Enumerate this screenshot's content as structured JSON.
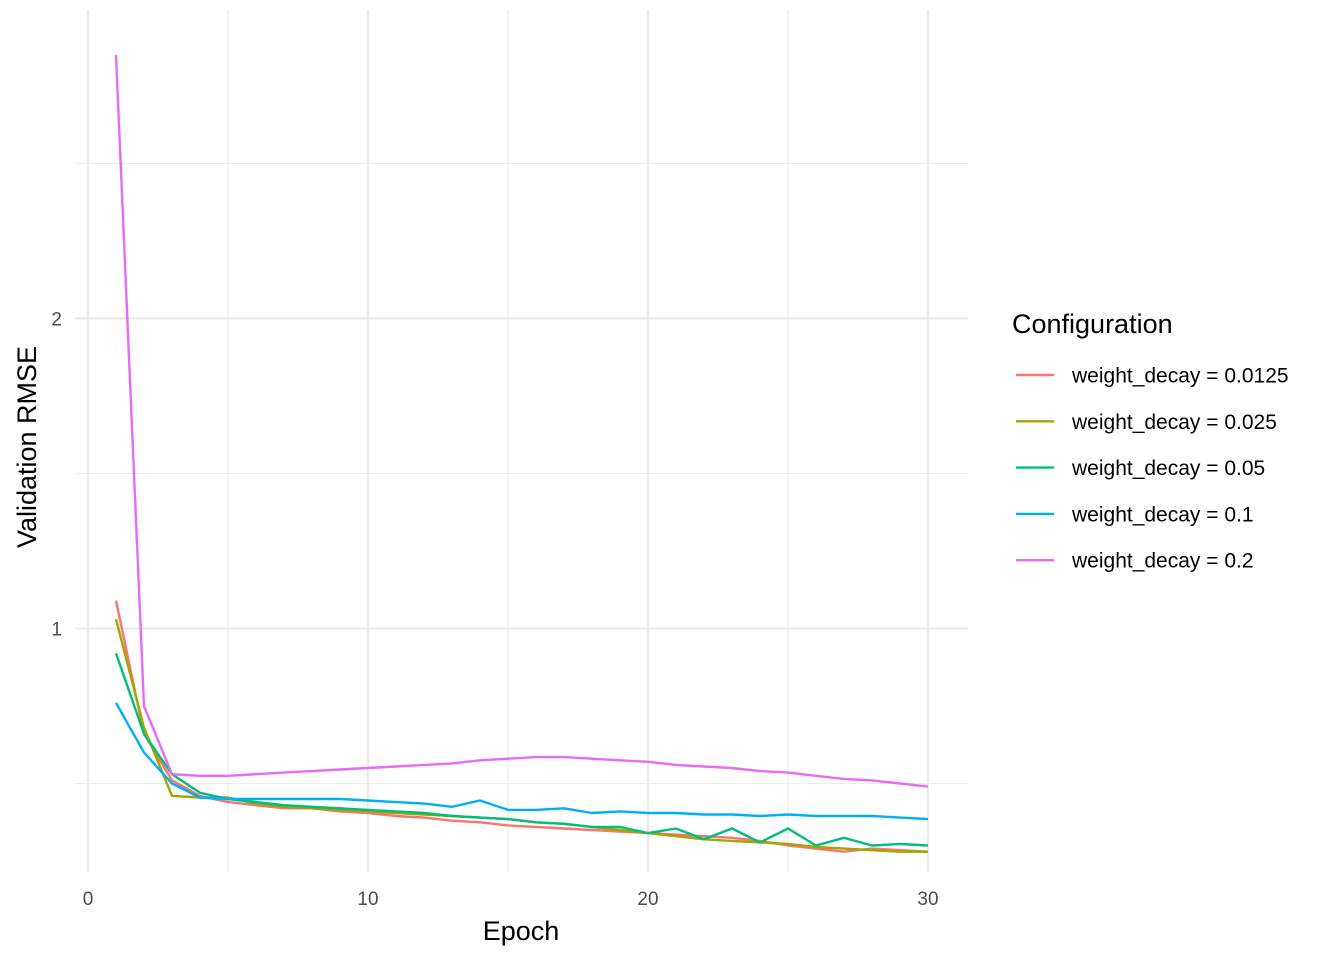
{
  "chart_data": {
    "type": "line",
    "xlabel": "Epoch",
    "ylabel": "Validation RMSE",
    "xlim": [
      0,
      30
    ],
    "ylim": [
      0.2,
      2.96
    ],
    "x_ticks": [
      0,
      10,
      20,
      30
    ],
    "y_ticks": [
      1,
      2
    ],
    "grid": true,
    "legend": {
      "title": "Configuration",
      "position": "right"
    },
    "series": [
      {
        "name": "weight_decay = 0.0125",
        "color": "#F8766D",
        "x": [
          1,
          2,
          3,
          4,
          5,
          6,
          7,
          8,
          9,
          10,
          11,
          12,
          13,
          14,
          15,
          16,
          17,
          18,
          19,
          20,
          21,
          22,
          23,
          24,
          25,
          26,
          27,
          28,
          29,
          30
        ],
        "values": [
          1.09,
          0.66,
          0.51,
          0.46,
          0.44,
          0.43,
          0.42,
          0.42,
          0.41,
          0.405,
          0.395,
          0.39,
          0.38,
          0.375,
          0.365,
          0.36,
          0.355,
          0.35,
          0.345,
          0.34,
          0.335,
          0.33,
          0.325,
          0.315,
          0.3,
          0.29,
          0.28,
          0.29,
          0.285,
          0.28
        ]
      },
      {
        "name": "weight_decay = 0.025",
        "color": "#A3A500",
        "x": [
          1,
          2,
          3,
          4,
          5,
          6,
          7,
          8,
          9,
          10,
          11,
          12,
          13,
          14,
          15,
          16,
          17,
          18,
          19,
          20,
          21,
          22,
          23,
          24,
          25,
          26,
          27,
          28,
          29,
          30
        ],
        "values": [
          1.03,
          0.68,
          0.46,
          0.455,
          0.455,
          0.435,
          0.425,
          0.42,
          0.415,
          0.41,
          0.405,
          0.4,
          0.395,
          0.39,
          0.385,
          0.375,
          0.37,
          0.36,
          0.35,
          0.34,
          0.33,
          0.32,
          0.315,
          0.31,
          0.305,
          0.295,
          0.29,
          0.285,
          0.28,
          0.28
        ]
      },
      {
        "name": "weight_decay = 0.05",
        "color": "#00BF7D",
        "x": [
          1,
          2,
          3,
          4,
          5,
          6,
          7,
          8,
          9,
          10,
          11,
          12,
          13,
          14,
          15,
          16,
          17,
          18,
          19,
          20,
          21,
          22,
          23,
          24,
          25,
          26,
          27,
          28,
          29,
          30
        ],
        "values": [
          0.92,
          0.66,
          0.53,
          0.47,
          0.45,
          0.44,
          0.43,
          0.425,
          0.42,
          0.415,
          0.41,
          0.405,
          0.395,
          0.39,
          0.385,
          0.375,
          0.37,
          0.36,
          0.36,
          0.34,
          0.355,
          0.32,
          0.355,
          0.31,
          0.355,
          0.3,
          0.325,
          0.3,
          0.305,
          0.3
        ]
      },
      {
        "name": "weight_decay = 0.1",
        "color": "#00B0F6",
        "x": [
          1,
          2,
          3,
          4,
          5,
          6,
          7,
          8,
          9,
          10,
          11,
          12,
          13,
          14,
          15,
          16,
          17,
          18,
          19,
          20,
          21,
          22,
          23,
          24,
          25,
          26,
          27,
          28,
          29,
          30
        ],
        "values": [
          0.76,
          0.6,
          0.5,
          0.455,
          0.45,
          0.45,
          0.45,
          0.45,
          0.45,
          0.445,
          0.44,
          0.435,
          0.425,
          0.445,
          0.415,
          0.415,
          0.42,
          0.405,
          0.41,
          0.405,
          0.405,
          0.4,
          0.4,
          0.395,
          0.4,
          0.395,
          0.395,
          0.395,
          0.39,
          0.385
        ]
      },
      {
        "name": "weight_decay = 0.2",
        "color": "#E76BF3",
        "x": [
          1,
          2,
          3,
          4,
          5,
          6,
          7,
          8,
          9,
          10,
          11,
          12,
          13,
          14,
          15,
          16,
          17,
          18,
          19,
          20,
          21,
          22,
          23,
          24,
          25,
          26,
          27,
          28,
          29,
          30
        ],
        "values": [
          2.85,
          0.75,
          0.53,
          0.525,
          0.525,
          0.53,
          0.535,
          0.54,
          0.545,
          0.55,
          0.555,
          0.56,
          0.565,
          0.575,
          0.58,
          0.585,
          0.585,
          0.58,
          0.575,
          0.57,
          0.56,
          0.555,
          0.55,
          0.54,
          0.535,
          0.525,
          0.515,
          0.51,
          0.5,
          0.49
        ]
      }
    ]
  }
}
